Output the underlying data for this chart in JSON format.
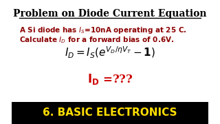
{
  "title": "Problem on Diode Current Equation",
  "footer": "6. BASIC ELECTRONICS",
  "bg_color": "#ffffff",
  "footer_bg": "#000000",
  "footer_text_color": "#ffdd00",
  "title_color": "#000000",
  "desc_color": "#8B0000",
  "eq_color": "#000000",
  "answer_color": "#cc0000",
  "footer_fontsize": 11,
  "title_fontsize": 10,
  "desc_fontsize": 7.5,
  "eq_fontsize": 11,
  "answer_fontsize": 12
}
